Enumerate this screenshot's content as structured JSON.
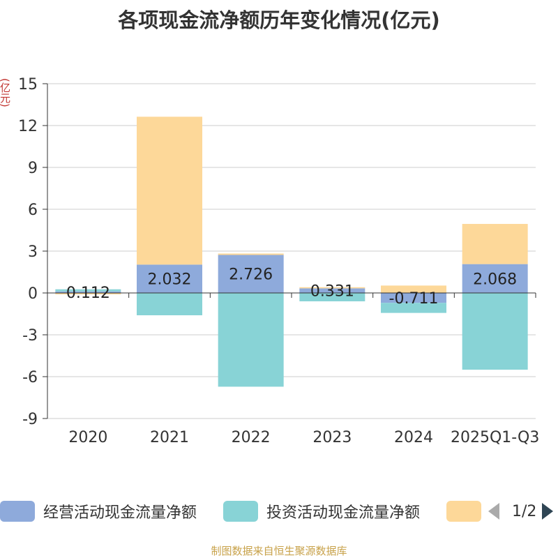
{
  "title": "各项现金流净额历年变化情况(亿元)",
  "unit_label": "(亿元)",
  "source": "制图数据来自恒生聚源数据库",
  "legend": {
    "items": [
      {
        "label": "经营活动现金流量净额",
        "color": "#8eaadb"
      },
      {
        "label": "投资活动现金流量净额",
        "color": "#88d3d6"
      },
      {
        "label": "",
        "color": "#fdd899"
      }
    ],
    "page_text": "1/2"
  },
  "chart_data": {
    "type": "bar",
    "stacked": true,
    "title": "各项现金流净额历年变化情况(亿元)",
    "ylabel": "(亿元)",
    "categories": [
      "2020",
      "2021",
      "2022",
      "2023",
      "2024",
      "2025Q1-Q3"
    ],
    "ylim": [
      -9,
      15
    ],
    "yticks": [
      15,
      12,
      9,
      6,
      3,
      0,
      -3,
      -6,
      -9
    ],
    "grid": true,
    "series": [
      {
        "name": "经营活动现金流量净额",
        "color": "#8eaadb",
        "values": [
          0.112,
          2.032,
          2.726,
          0.331,
          -0.711,
          2.068
        ],
        "show_labels": true
      },
      {
        "name": "投资活动现金流量净额",
        "color": "#88d3d6",
        "values": [
          0.15,
          -1.6,
          -6.72,
          -0.6,
          -0.72,
          -5.5
        ],
        "show_labels": false
      },
      {
        "name": "",
        "color": "#fdd899",
        "values": [
          -0.1,
          10.6,
          0.1,
          0.08,
          0.53,
          2.88
        ],
        "show_labels": false
      }
    ],
    "data_labels": [
      "0.112",
      "2.032",
      "2.726",
      "0.331",
      "-0.711",
      "2.068"
    ]
  }
}
